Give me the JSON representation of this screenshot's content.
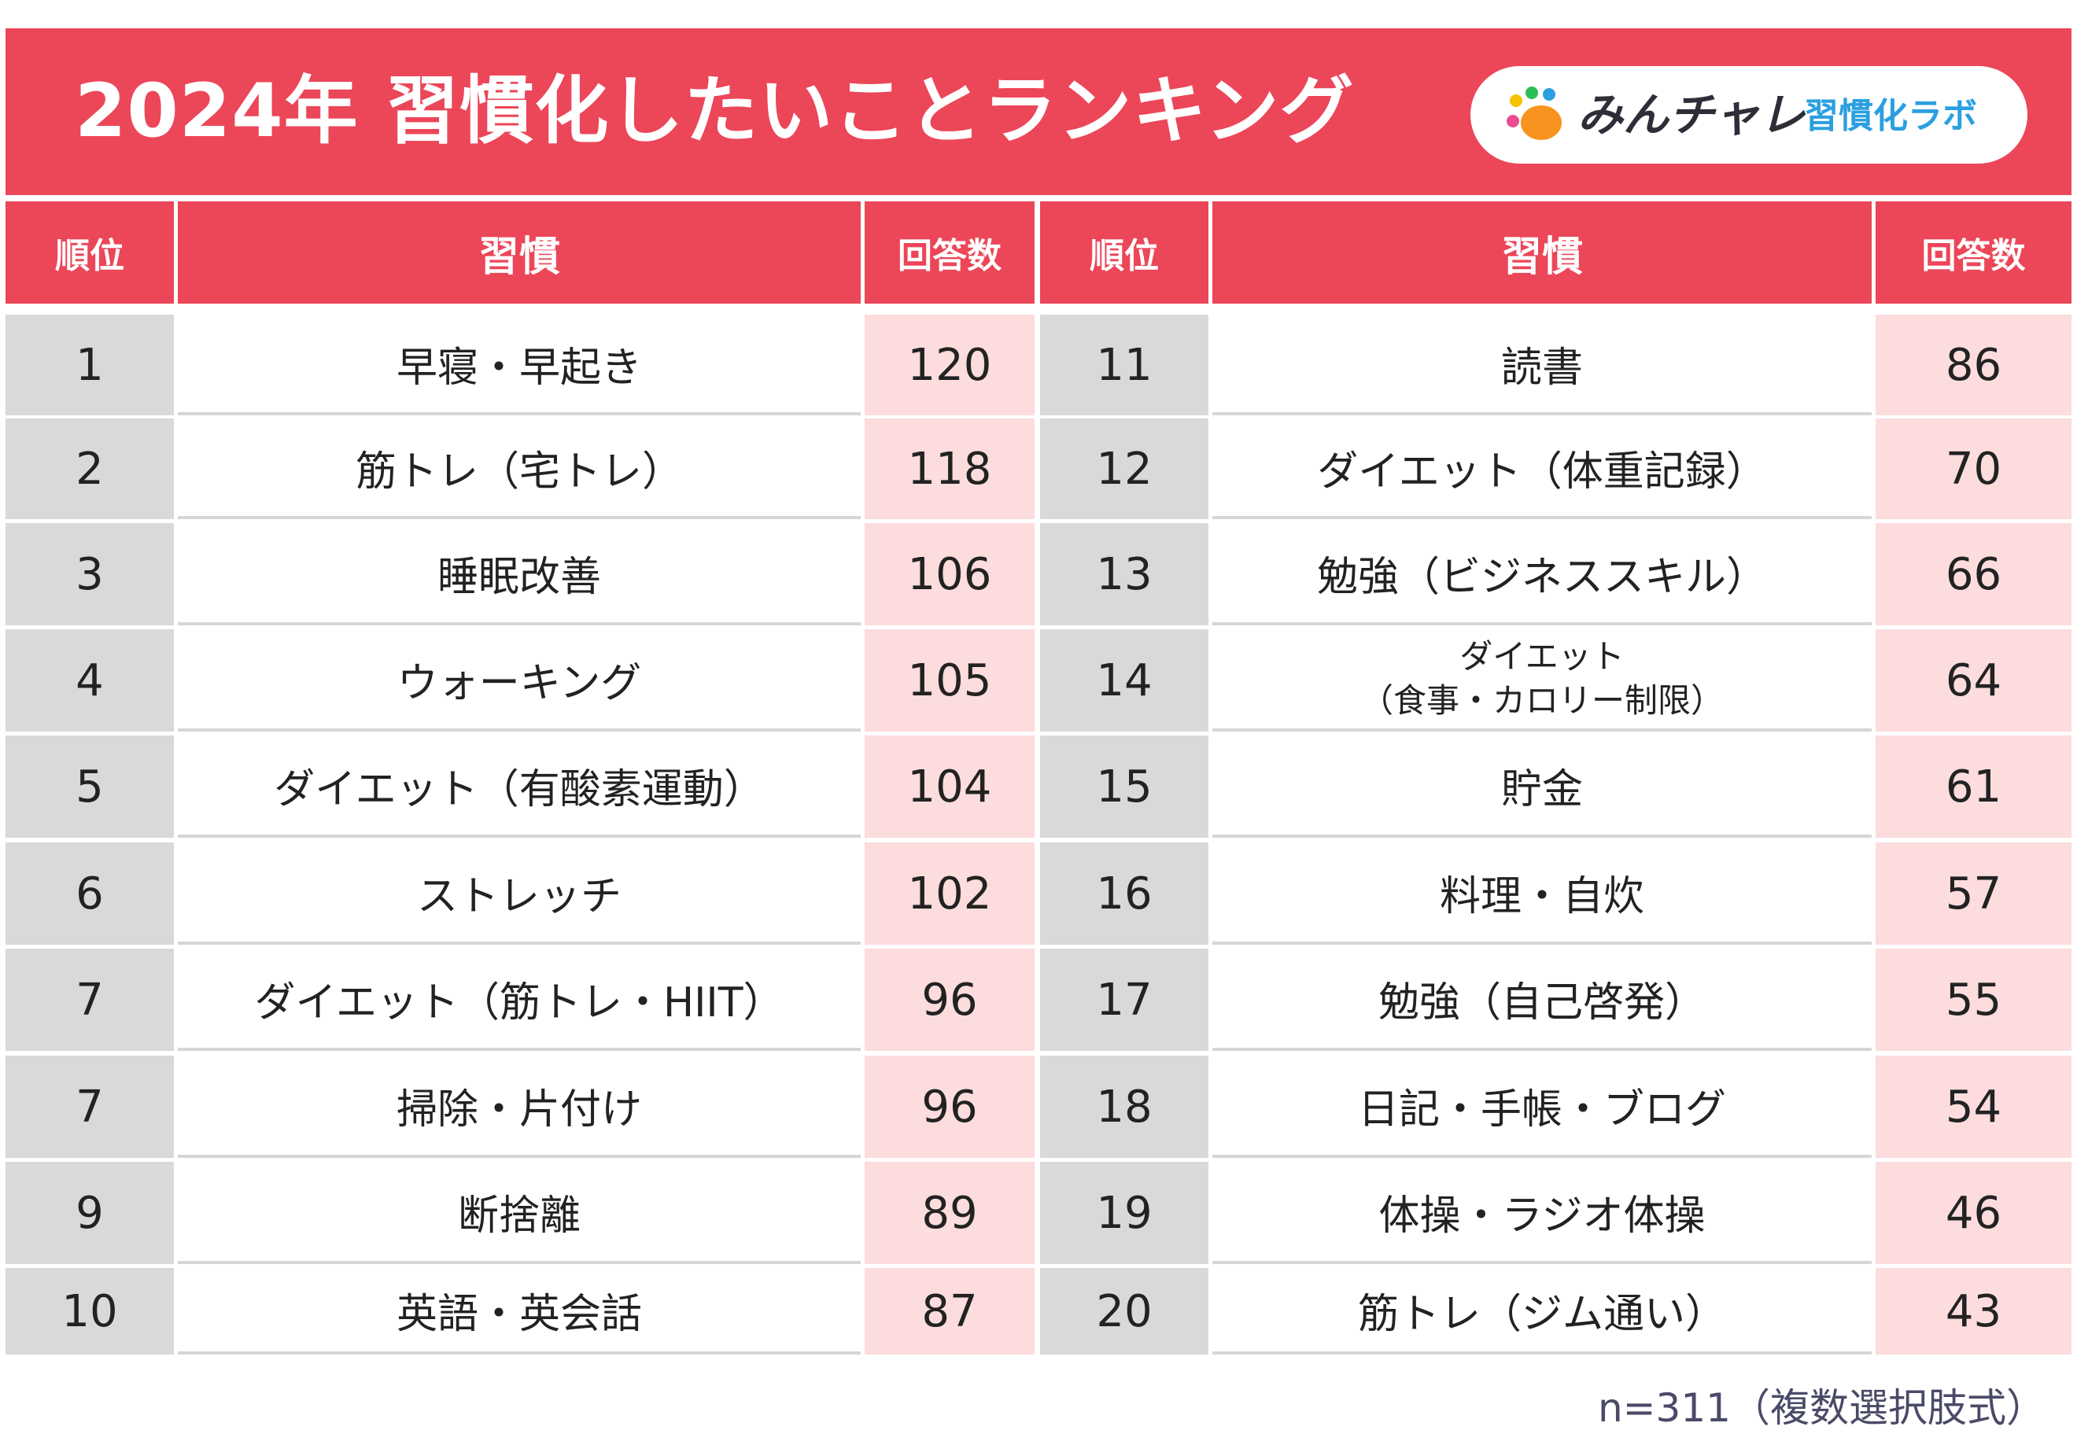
{
  "title": "2024年 習慣化したいことランキング",
  "logo": {
    "brand": "みんチャレ",
    "sub": "習慣化ラボ",
    "dot_colors": [
      "#f5c200",
      "#2bbf5a",
      "#2b9fe0",
      "#ee4a8f",
      "#f7931e"
    ]
  },
  "colors": {
    "accent": "#ec4659",
    "rank_bg": "#d9d9d9",
    "count_bg": "#fcdcdd"
  },
  "headers": {
    "left": {
      "rank": "順位",
      "habit": "習慣",
      "count": "回答数"
    },
    "right": {
      "rank": "順位",
      "habit": "習慣",
      "count": "回答数"
    }
  },
  "left_rows": [
    {
      "rank": "1",
      "habit": "早寝・早起き",
      "count": "120"
    },
    {
      "rank": "2",
      "habit": "筋トレ（宅トレ）",
      "count": "118"
    },
    {
      "rank": "3",
      "habit": "睡眠改善",
      "count": "106"
    },
    {
      "rank": "4",
      "habit": "ウォーキング",
      "count": "105"
    },
    {
      "rank": "5",
      "habit": "ダイエット（有酸素運動）",
      "count": "104"
    },
    {
      "rank": "6",
      "habit": "ストレッチ",
      "count": "102"
    },
    {
      "rank": "7",
      "habit": "ダイエット（筋トレ・HIIT）",
      "count": "96"
    },
    {
      "rank": "7",
      "habit": "掃除・片付け",
      "count": "96"
    },
    {
      "rank": "9",
      "habit": "断捨離",
      "count": "89"
    },
    {
      "rank": "10",
      "habit": "英語・英会話",
      "count": "87"
    }
  ],
  "right_rows": [
    {
      "rank": "11",
      "habit": "読書",
      "count": "86"
    },
    {
      "rank": "12",
      "habit": "ダイエット（体重記録）",
      "count": "70"
    },
    {
      "rank": "13",
      "habit": "勉強（ビジネススキル）",
      "count": "66"
    },
    {
      "rank": "14",
      "habit_line1": "ダイエット",
      "habit_line2": "（食事・カロリー制限）",
      "count": "64"
    },
    {
      "rank": "15",
      "habit": "貯金",
      "count": "61"
    },
    {
      "rank": "16",
      "habit": "料理・自炊",
      "count": "57"
    },
    {
      "rank": "17",
      "habit": "勉強（自己啓発）",
      "count": "55"
    },
    {
      "rank": "18",
      "habit": "日記・手帳・ブログ",
      "count": "54"
    },
    {
      "rank": "19",
      "habit": "体操・ラジオ体操",
      "count": "46"
    },
    {
      "rank": "20",
      "habit": "筋トレ（ジム通い）",
      "count": "43"
    }
  ],
  "footnote": "n=311（複数選択肢式）"
}
